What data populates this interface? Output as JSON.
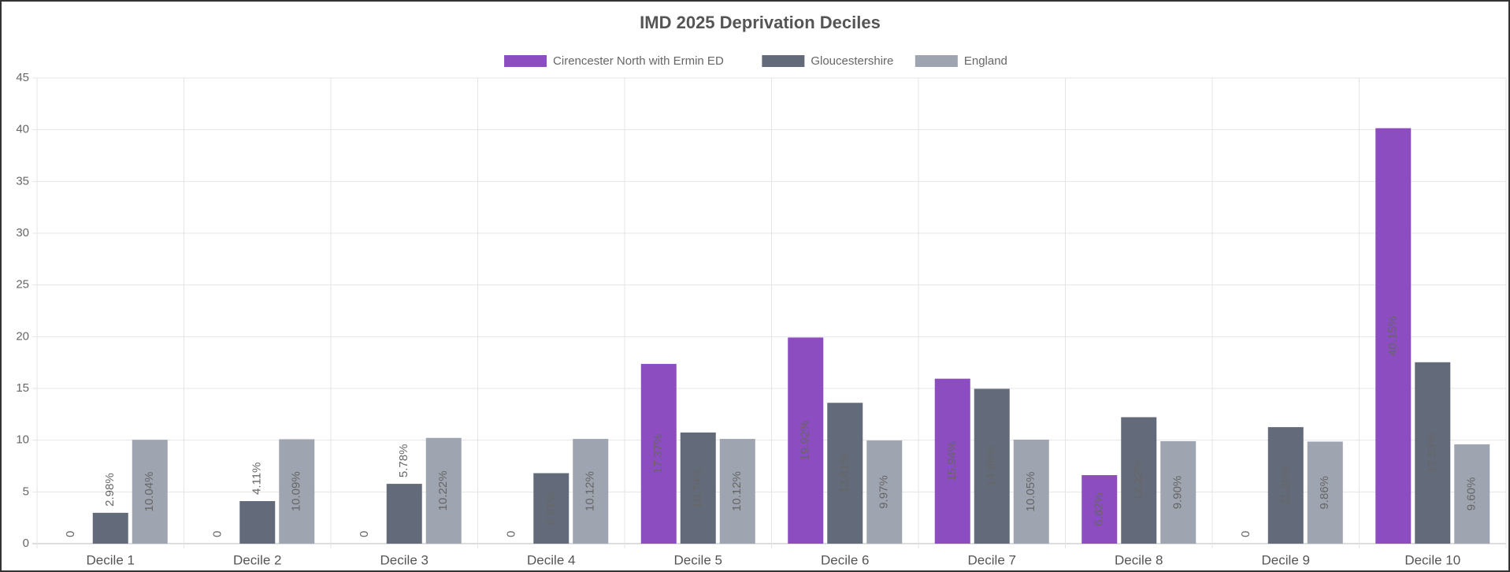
{
  "chart_data": {
    "type": "bar",
    "title": "IMD 2025 Deprivation Deciles",
    "categories": [
      "Decile 1",
      "Decile 2",
      "Decile 3",
      "Decile 4",
      "Decile 5",
      "Decile 6",
      "Decile 7",
      "Decile 8",
      "Decile 9",
      "Decile 10"
    ],
    "series": [
      {
        "name": "Cirencester North with Ermin ED",
        "color": "#8b4dbf",
        "values": [
          0,
          0,
          0,
          0,
          17.37,
          19.92,
          15.94,
          6.62,
          0,
          40.15
        ],
        "value_labels": [
          "0",
          "0",
          "0",
          "0",
          "17.37%",
          "19.92%",
          "15.94%",
          "6.62%",
          "0",
          "40.15%"
        ]
      },
      {
        "name": "Gloucestershire",
        "color": "#636b7b",
        "values": [
          2.98,
          4.11,
          5.78,
          6.81,
          10.74,
          13.61,
          14.96,
          12.22,
          11.26,
          17.53
        ],
        "value_labels": [
          "2.98%",
          "4.11%",
          "5.78%",
          "6.81%",
          "10.74%",
          "13.61%",
          "14.96%",
          "12.22%",
          "11.26%",
          "17.53%"
        ]
      },
      {
        "name": "England",
        "color": "#9ea4b0",
        "values": [
          10.04,
          10.09,
          10.22,
          10.12,
          10.12,
          9.97,
          10.05,
          9.9,
          9.86,
          9.6
        ],
        "value_labels": [
          "10.04%",
          "10.09%",
          "10.22%",
          "10.12%",
          "10.12%",
          "9.97%",
          "10.05%",
          "9.90%",
          "9.86%",
          "9.60%"
        ]
      }
    ],
    "ylim": [
      0,
      45
    ],
    "yticks": [
      0,
      5,
      10,
      15,
      20,
      25,
      30,
      35,
      40,
      45
    ],
    "grid": true,
    "legend": "top"
  }
}
